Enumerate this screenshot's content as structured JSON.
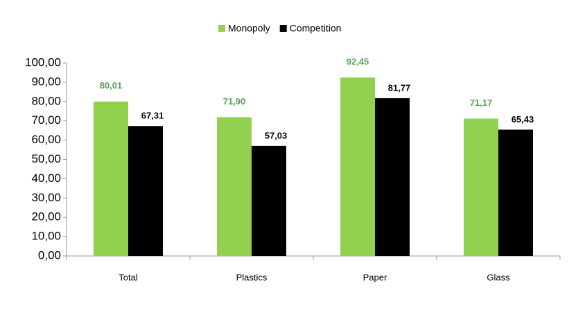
{
  "chart_data": {
    "type": "bar",
    "categories": [
      "Total",
      "Plastics",
      "Paper",
      "Glass"
    ],
    "series": [
      {
        "name": "Monopoly",
        "color": "#92d050",
        "values": [
          80.01,
          71.9,
          92.45,
          71.17
        ],
        "value_labels": [
          "80,01",
          "71,90",
          "92,45",
          "71,17"
        ],
        "label_color": "#5aa05a"
      },
      {
        "name": "Competition",
        "color": "#000000",
        "values": [
          67.31,
          57.03,
          81.77,
          65.43
        ],
        "value_labels": [
          "67,31",
          "57,03",
          "81,77",
          "65,43"
        ],
        "label_color": "#000000"
      }
    ],
    "ylim": [
      0,
      100
    ],
    "yticks": [
      {
        "value": 0,
        "label": "0,00"
      },
      {
        "value": 10,
        "label": "10,00"
      },
      {
        "value": 20,
        "label": "20,00"
      },
      {
        "value": 30,
        "label": "30,00"
      },
      {
        "value": 40,
        "label": "40,00"
      },
      {
        "value": 50,
        "label": "50,00"
      },
      {
        "value": 60,
        "label": "60,00"
      },
      {
        "value": 70,
        "label": "70,00"
      },
      {
        "value": 80,
        "label": "80,00"
      },
      {
        "value": 90,
        "label": "90,00"
      },
      {
        "value": 100,
        "label": "100,00"
      }
    ],
    "grid": false,
    "legend": "top"
  }
}
